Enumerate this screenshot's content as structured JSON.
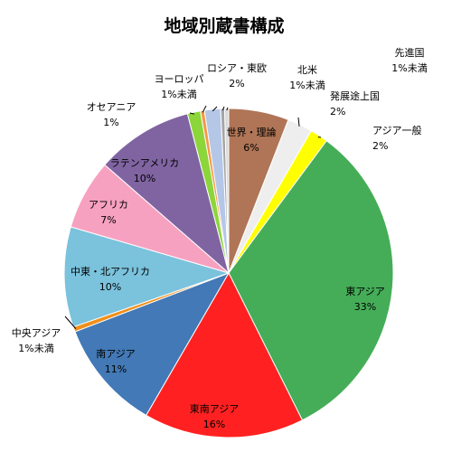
{
  "chart_data": {
    "type": "pie",
    "title": "地域別蔵書構成",
    "slices": [
      {
        "category": "世界・理論",
        "value_text": "6%",
        "value": 6,
        "color": "#B07556"
      },
      {
        "category": "発展途上国",
        "value_text": "2%",
        "value": 2.5,
        "color": "#EEEEEE"
      },
      {
        "category": "アジア一般",
        "value_text": "2%",
        "value": 1.8,
        "color": "#FFFF00"
      },
      {
        "category": "東アジア",
        "value_text": "33%",
        "value": 33,
        "color": "#45AD57"
      },
      {
        "category": "東南アジア",
        "value_text": "16%",
        "value": 16,
        "color": "#FF2121"
      },
      {
        "category": "南アジア",
        "value_text": "11%",
        "value": 11,
        "color": "#4279B6"
      },
      {
        "category": "中央アジア",
        "value_text": "1%未満",
        "value": 0.5,
        "color": "#F0901A"
      },
      {
        "category": "中東・北アフリカ",
        "value_text": "10%",
        "value": 10,
        "color": "#7BC2DC"
      },
      {
        "category": "アフリカ",
        "value_text": "7%",
        "value": 7,
        "color": "#F7A1C0"
      },
      {
        "category": "ラテンアメリカ",
        "value_text": "10%",
        "value": 9.7,
        "color": "#8064A2"
      },
      {
        "category": "オセアニア",
        "value_text": "1%",
        "value": 1.3,
        "color": "#8CD53A"
      },
      {
        "category": "ヨーロッパ",
        "value_text": "1%未満",
        "value": 0.4,
        "color": "#F79646"
      },
      {
        "category": "ロシア・東欧",
        "value_text": "2%",
        "value": 1.6,
        "color": "#B4C7E7"
      },
      {
        "category": "北米",
        "value_text": "1%未満",
        "value": 0.4,
        "color": "#A5A5A5"
      },
      {
        "category": "先進国",
        "value_text": "1%未満",
        "value": 0.4,
        "color": "#D9D9D9"
      }
    ]
  }
}
